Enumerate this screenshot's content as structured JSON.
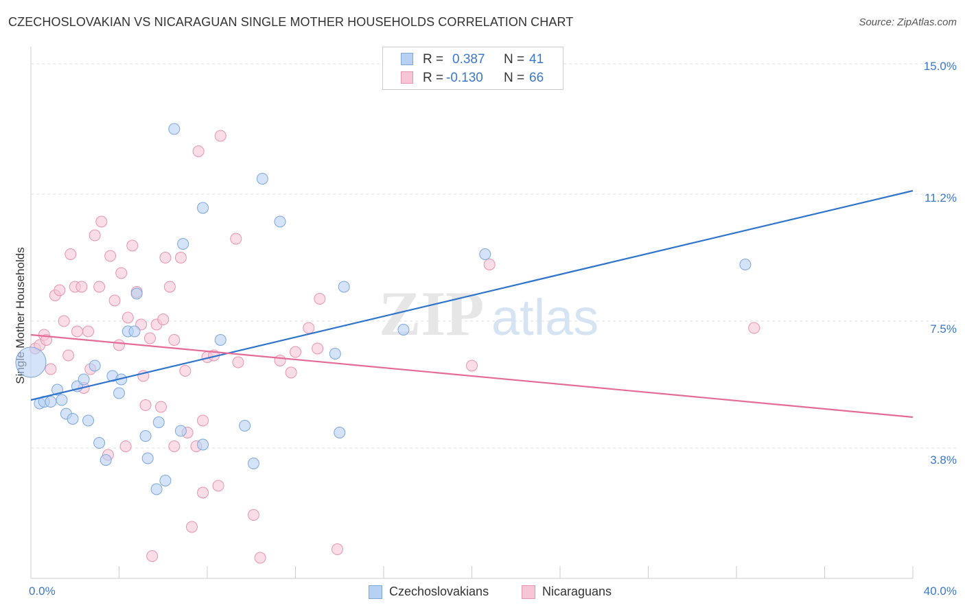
{
  "title": "CZECHOSLOVAKIAN VS NICARAGUAN SINGLE MOTHER HOUSEHOLDS CORRELATION CHART",
  "source": "Source: ZipAtlas.com",
  "watermark": {
    "part1": "ZIP",
    "part2": "atlas"
  },
  "legend_top": {
    "rows": [
      {
        "r_label": "R =",
        "r_value": "0.387",
        "n_label": "N =",
        "n_value": "41"
      },
      {
        "r_label": "R =",
        "r_value": "-0.130",
        "n_label": "N =",
        "n_value": "66"
      }
    ]
  },
  "legend_bottom": [
    "Czechoslovakians",
    "Nicaraguans"
  ],
  "axis": {
    "x_min_label": "0.0%",
    "x_max_label": "40.0%",
    "y_tick_labels": [
      "15.0%",
      "11.2%",
      "7.5%",
      "3.8%"
    ]
  },
  "colors": {
    "blue_fill": "#b7d1f3",
    "blue_stroke": "#7ba7dd",
    "blue_line": "#2e74cc",
    "pink_fill": "#f7c6d6",
    "pink_stroke": "#e993b0",
    "pink_line": "#e46b97",
    "accent_text": "#3a78c9",
    "grid": "#dddddd"
  },
  "chart_data": {
    "type": "scatter",
    "title": "CZECHOSLOVAKIAN VS NICARAGUAN SINGLE MOTHER HOUSEHOLDS CORRELATION CHART",
    "xlabel": "",
    "ylabel": "Single Mother Households",
    "xlim": [
      0,
      40
    ],
    "ylim": [
      0,
      15.5
    ],
    "y_ticks": [
      3.8,
      7.5,
      11.2,
      15.0
    ],
    "grid": true,
    "legend_position": "top-center",
    "series": [
      {
        "name": "Czechoslovakians",
        "r": 0.387,
        "n": 41,
        "trend": {
          "x0": 0,
          "y0": 5.2,
          "x1": 40,
          "y1": 11.3
        },
        "points": [
          {
            "x": 0.0,
            "y": 6.3,
            "big": true
          },
          {
            "x": 0.4,
            "y": 5.1
          },
          {
            "x": 0.6,
            "y": 5.15
          },
          {
            "x": 0.9,
            "y": 5.15
          },
          {
            "x": 1.2,
            "y": 5.5
          },
          {
            "x": 1.4,
            "y": 5.2
          },
          {
            "x": 1.6,
            "y": 4.8
          },
          {
            "x": 1.9,
            "y": 4.65
          },
          {
            "x": 2.1,
            "y": 5.6
          },
          {
            "x": 2.4,
            "y": 5.8
          },
          {
            "x": 2.6,
            "y": 4.6
          },
          {
            "x": 2.9,
            "y": 6.2
          },
          {
            "x": 3.1,
            "y": 3.95
          },
          {
            "x": 3.4,
            "y": 3.45
          },
          {
            "x": 3.7,
            "y": 5.9
          },
          {
            "x": 4.0,
            "y": 5.4
          },
          {
            "x": 4.1,
            "y": 5.8
          },
          {
            "x": 4.4,
            "y": 7.2
          },
          {
            "x": 4.7,
            "y": 7.2
          },
          {
            "x": 4.8,
            "y": 8.3
          },
          {
            "x": 5.2,
            "y": 4.15
          },
          {
            "x": 5.3,
            "y": 3.5
          },
          {
            "x": 5.7,
            "y": 2.6
          },
          {
            "x": 5.8,
            "y": 4.55
          },
          {
            "x": 6.1,
            "y": 2.85
          },
          {
            "x": 6.5,
            "y": 13.1
          },
          {
            "x": 6.8,
            "y": 4.3
          },
          {
            "x": 6.9,
            "y": 9.75
          },
          {
            "x": 7.8,
            "y": 3.9
          },
          {
            "x": 7.8,
            "y": 10.8
          },
          {
            "x": 8.6,
            "y": 6.95
          },
          {
            "x": 9.7,
            "y": 4.45
          },
          {
            "x": 10.1,
            "y": 3.35
          },
          {
            "x": 10.5,
            "y": 11.65
          },
          {
            "x": 11.3,
            "y": 10.4
          },
          {
            "x": 13.8,
            "y": 6.55
          },
          {
            "x": 14.0,
            "y": 4.25
          },
          {
            "x": 14.2,
            "y": 8.5
          },
          {
            "x": 16.9,
            "y": 7.25
          },
          {
            "x": 20.6,
            "y": 9.45
          },
          {
            "x": 32.4,
            "y": 9.15
          }
        ]
      },
      {
        "name": "Nicaraguans",
        "r": -0.13,
        "n": 66,
        "trend": {
          "x0": 0,
          "y0": 7.1,
          "x1": 40,
          "y1": 4.7
        },
        "points": [
          {
            "x": 0.2,
            "y": 6.7
          },
          {
            "x": 0.4,
            "y": 6.8
          },
          {
            "x": 0.6,
            "y": 7.1
          },
          {
            "x": 0.7,
            "y": 6.95
          },
          {
            "x": 0.9,
            "y": 6.1
          },
          {
            "x": 1.1,
            "y": 8.25
          },
          {
            "x": 1.3,
            "y": 8.4
          },
          {
            "x": 1.5,
            "y": 7.5
          },
          {
            "x": 1.7,
            "y": 6.5
          },
          {
            "x": 1.8,
            "y": 9.45
          },
          {
            "x": 2.0,
            "y": 8.5
          },
          {
            "x": 2.1,
            "y": 7.2
          },
          {
            "x": 2.3,
            "y": 8.5
          },
          {
            "x": 2.4,
            "y": 5.55
          },
          {
            "x": 2.6,
            "y": 7.2
          },
          {
            "x": 2.7,
            "y": 6.1
          },
          {
            "x": 2.9,
            "y": 10.0
          },
          {
            "x": 3.1,
            "y": 8.5
          },
          {
            "x": 3.2,
            "y": 10.4
          },
          {
            "x": 3.5,
            "y": 3.6
          },
          {
            "x": 3.6,
            "y": 9.4
          },
          {
            "x": 3.8,
            "y": 8.1
          },
          {
            "x": 4.0,
            "y": 6.8
          },
          {
            "x": 4.1,
            "y": 8.9
          },
          {
            "x": 4.3,
            "y": 3.85
          },
          {
            "x": 4.4,
            "y": 7.6
          },
          {
            "x": 4.6,
            "y": 9.7
          },
          {
            "x": 4.8,
            "y": 8.35
          },
          {
            "x": 5.0,
            "y": 7.4
          },
          {
            "x": 5.1,
            "y": 5.9
          },
          {
            "x": 5.2,
            "y": 5.05
          },
          {
            "x": 5.4,
            "y": 7.0
          },
          {
            "x": 5.5,
            "y": 0.65
          },
          {
            "x": 5.7,
            "y": 7.4
          },
          {
            "x": 5.9,
            "y": 5.0
          },
          {
            "x": 6.0,
            "y": 7.55
          },
          {
            "x": 6.1,
            "y": 9.35
          },
          {
            "x": 6.3,
            "y": 8.5
          },
          {
            "x": 6.5,
            "y": 6.95
          },
          {
            "x": 6.8,
            "y": 9.35
          },
          {
            "x": 7.0,
            "y": 6.05
          },
          {
            "x": 7.1,
            "y": 4.25
          },
          {
            "x": 7.3,
            "y": 1.5
          },
          {
            "x": 7.5,
            "y": 3.85
          },
          {
            "x": 7.6,
            "y": 12.45
          },
          {
            "x": 7.8,
            "y": 4.6
          },
          {
            "x": 7.8,
            "y": 2.5
          },
          {
            "x": 8.0,
            "y": 6.45
          },
          {
            "x": 8.3,
            "y": 6.5
          },
          {
            "x": 8.5,
            "y": 2.7
          },
          {
            "x": 8.6,
            "y": 12.9
          },
          {
            "x": 9.3,
            "y": 9.9
          },
          {
            "x": 9.4,
            "y": 6.3
          },
          {
            "x": 10.1,
            "y": 1.85
          },
          {
            "x": 10.4,
            "y": 0.6
          },
          {
            "x": 11.3,
            "y": 6.35
          },
          {
            "x": 11.8,
            "y": 6.0
          },
          {
            "x": 12.0,
            "y": 6.6
          },
          {
            "x": 12.6,
            "y": 7.3
          },
          {
            "x": 13.0,
            "y": 6.7
          },
          {
            "x": 13.1,
            "y": 8.15
          },
          {
            "x": 13.9,
            "y": 0.85
          },
          {
            "x": 20.0,
            "y": 6.2
          },
          {
            "x": 20.8,
            "y": 9.15
          },
          {
            "x": 32.8,
            "y": 7.3
          },
          {
            "x": 6.5,
            "y": 3.85
          }
        ]
      }
    ]
  }
}
